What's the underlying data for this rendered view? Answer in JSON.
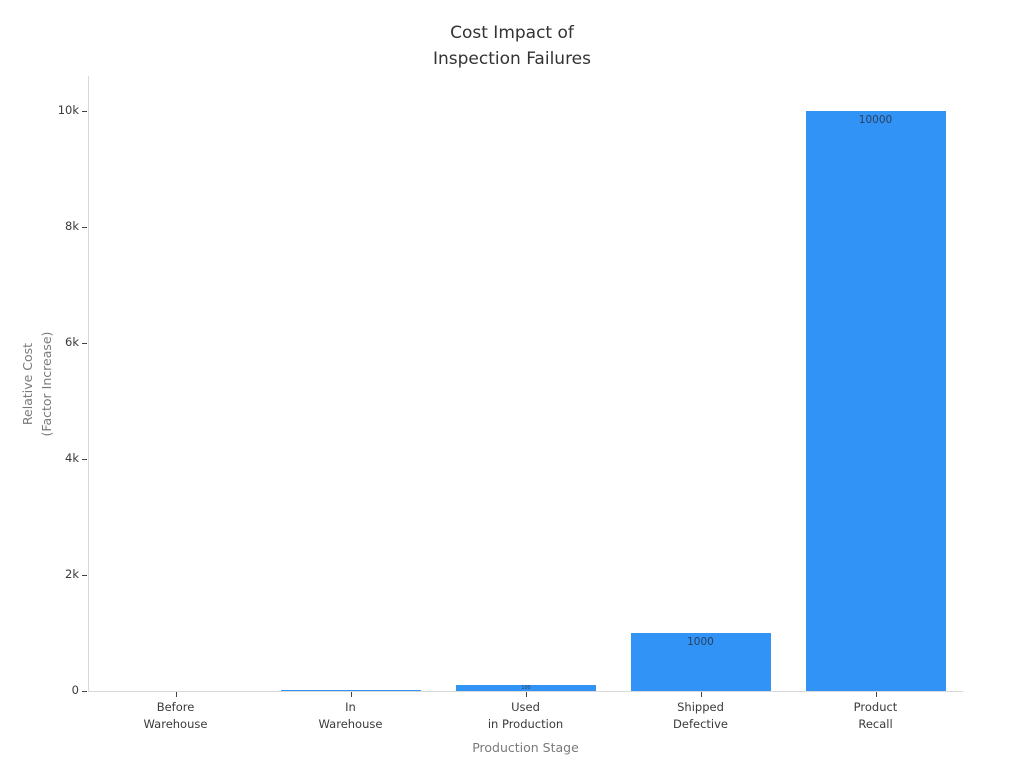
{
  "chart_data": {
    "type": "bar",
    "title": "Cost Impact of\nInspection Failures",
    "xlabel": "Production Stage",
    "ylabel": "Relative Cost\n(Factor Increase)",
    "categories": [
      "Before\nWarehouse",
      "In\nWarehouse",
      "Used\nin Production",
      "Shipped\nDefective",
      "Product\nRecall"
    ],
    "values": [
      1,
      10,
      100,
      1000,
      10000
    ],
    "visible_bar_labels": [
      "100",
      "1000",
      "10000"
    ],
    "yticks": [
      {
        "value": 0,
        "label": "0"
      },
      {
        "value": 2000,
        "label": "2k"
      },
      {
        "value": 4000,
        "label": "4k"
      },
      {
        "value": 6000,
        "label": "6k"
      },
      {
        "value": 8000,
        "label": "8k"
      },
      {
        "value": 10000,
        "label": "10k"
      }
    ],
    "ylim": [
      0,
      10600
    ],
    "grid": false,
    "legend": "none",
    "colors": {
      "bar": "#3193f5",
      "bar_label": "#2a3f5f",
      "axis_line": "#d9d9d9",
      "tick": "#444444",
      "tick_label": "#3a3a3a",
      "axis_title": "#7a7a7a",
      "title": "#333333",
      "background": "#ffffff"
    }
  }
}
